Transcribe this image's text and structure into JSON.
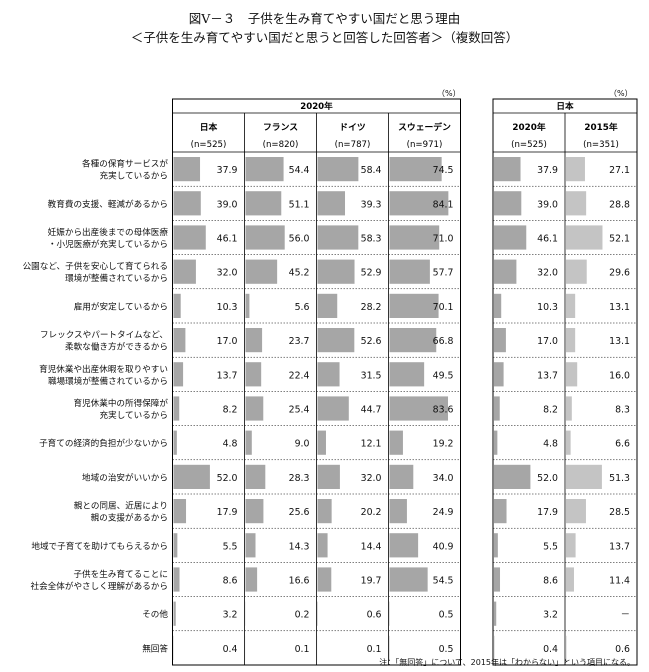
{
  "title": "図Ⅴ－３　子供を生み育てやすい国だと思う理由",
  "subtitle": "＜子供を生み育てやすい国だと思うと回答した回答者＞（複数回答）",
  "unit": "（%）",
  "group_2020": "2020年",
  "group_japan": "日本",
  "note": "注：「無回答」について、2015年は「わからない」という項目になる。",
  "colors": {
    "bar": "#a6a6a6",
    "bar2015": "#c4c4c4",
    "grid": "#000000"
  },
  "chart_data": [
    {
      "type": "bar",
      "title": "2020年",
      "categories": [
        "各種の保育サービスが\n充実しているから",
        "教育費の支援、軽減があるから",
        "妊娠から出産後までの母体医療\n・小児医療が充実しているから",
        "公園など、子供を安心して育てられる\n環境が整備されているから",
        "雇用が安定しているから",
        "フレックスやパートタイムなど、\n柔軟な働き方ができるから",
        "育児休業や出産休暇を取りやすい\n職場環境が整備されているから",
        "育児休業中の所得保障が\n充実しているから",
        "子育ての経済的負担が少ないから",
        "地域の治安がいいから",
        "親との同居、近居により\n親の支援があるから",
        "地域で子育てを助けてもらえるから",
        "子供を生み育てることに\n社会全体がやさしく理解があるから",
        "その他",
        "無回答"
      ],
      "series": [
        {
          "name": "日本",
          "n": "(n=525)",
          "values": [
            37.9,
            39.0,
            46.1,
            32.0,
            10.3,
            17.0,
            13.7,
            8.2,
            4.8,
            52.0,
            17.9,
            5.5,
            8.6,
            3.2,
            0.4
          ]
        },
        {
          "name": "フランス",
          "n": "(n=820)",
          "values": [
            54.4,
            51.1,
            56.0,
            45.2,
            5.6,
            23.7,
            22.4,
            25.4,
            9.0,
            28.3,
            25.6,
            14.3,
            16.6,
            0.2,
            0.1
          ]
        },
        {
          "name": "ドイツ",
          "n": "(n=787)",
          "values": [
            58.4,
            39.3,
            58.3,
            52.9,
            28.2,
            52.6,
            31.5,
            44.7,
            12.1,
            32.0,
            20.2,
            14.4,
            19.7,
            0.6,
            0.1
          ]
        },
        {
          "name": "スウェーデン",
          "n": "(n=971)",
          "values": [
            74.5,
            84.1,
            71.0,
            57.7,
            70.1,
            66.8,
            49.5,
            83.6,
            19.2,
            34.0,
            24.9,
            40.9,
            54.5,
            0.5,
            0.5
          ]
        }
      ],
      "ylim": [
        0,
        100
      ]
    },
    {
      "type": "bar",
      "title": "日本",
      "series": [
        {
          "name": "2020年",
          "n": "(n=525)",
          "values": [
            37.9,
            39.0,
            46.1,
            32.0,
            10.3,
            17.0,
            13.7,
            8.2,
            4.8,
            52.0,
            17.9,
            5.5,
            8.6,
            3.2,
            0.4
          ]
        },
        {
          "name": "2015年",
          "n": "(n=351)",
          "values": [
            27.1,
            28.8,
            52.1,
            29.6,
            13.1,
            13.1,
            16.0,
            8.3,
            6.6,
            51.3,
            28.5,
            13.7,
            11.4,
            null,
            0.6
          ]
        }
      ],
      "missing_label": "－",
      "ylim": [
        0,
        100
      ]
    }
  ]
}
